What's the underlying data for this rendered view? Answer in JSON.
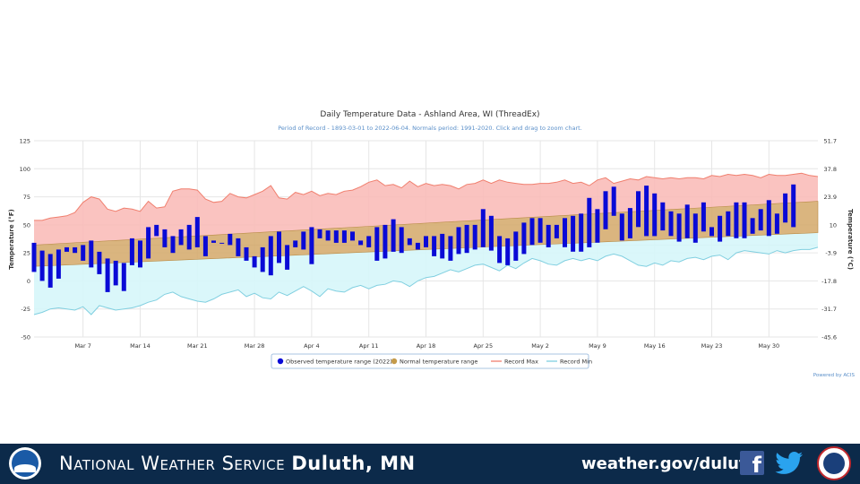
{
  "chart_data": {
    "type": "bar",
    "title": "Daily Temperature Data - Ashland Area, WI (ThreadEx)",
    "subtitle": "Period of Record - 1893-03-01 to 2022-06-04. Normals period: 1991-2020. Click and drag to zoom chart.",
    "ylabel_left": "Temperature (°F)",
    "ylabel_right": "Temperature (°C)",
    "ylim": [
      -50,
      125
    ],
    "y_ticks": [
      "125",
      "100",
      "75",
      "50",
      "25",
      "0",
      "-25",
      "-50"
    ],
    "y_ticks_c": [
      "51.7",
      "37.8",
      "23.9",
      "10",
      "-3.9",
      "-17.8",
      "-31.7",
      "-45.6"
    ],
    "x_ticks": [
      "Mar 7",
      "Mar 14",
      "Mar 21",
      "Mar 28",
      "Apr 4",
      "Apr 11",
      "Apr 18",
      "Apr 25",
      "May 2",
      "May 9",
      "May 16",
      "May 23",
      "May 30"
    ],
    "x_tick_days": [
      6,
      13,
      20,
      27,
      34,
      41,
      48,
      55,
      62,
      69,
      76,
      83,
      90
    ],
    "grid": true,
    "legend_position": "bottom-center",
    "legend": [
      {
        "label": "Observed temperature range (2022)",
        "color": "#0a0ad6",
        "marker": "dot"
      },
      {
        "label": "Normal temperature range",
        "color": "#c49a4a",
        "marker": "dot"
      },
      {
        "label": "Record Max",
        "color": "#f07f6e",
        "marker": "line"
      },
      {
        "label": "Record Min",
        "color": "#80cfe0",
        "marker": "line"
      }
    ],
    "credit": "Powered by ACIS",
    "series": [
      {
        "name": "Observed temperature range (2022)",
        "color": "#0a0ad6",
        "lows": [
          8,
          0,
          -6,
          2,
          26,
          25,
          18,
          12,
          6,
          -10,
          -4,
          -9,
          14,
          12,
          20,
          40,
          30,
          25,
          32,
          28,
          30,
          22,
          34,
          36,
          32,
          22,
          18,
          12,
          8,
          5,
          16,
          10,
          30,
          28,
          15,
          38,
          36,
          34,
          34,
          36,
          32,
          30,
          18,
          20,
          26,
          25,
          32,
          28,
          30,
          22,
          20,
          18,
          24,
          25,
          28,
          30,
          27,
          16,
          14,
          18,
          24,
          32,
          34,
          30,
          38,
          30,
          26,
          26,
          30,
          34,
          46,
          58,
          36,
          38,
          48,
          40,
          40,
          45,
          40,
          35,
          38,
          34,
          44,
          40,
          35,
          40,
          38,
          38,
          42,
          45,
          40,
          42,
          52,
          48
        ],
        "highs": [
          34,
          27,
          24,
          28,
          30,
          30,
          32,
          36,
          26,
          20,
          18,
          16,
          38,
          36,
          48,
          50,
          46,
          40,
          46,
          50,
          57,
          40,
          36,
          34,
          42,
          38,
          30,
          22,
          30,
          40,
          44,
          32,
          36,
          44,
          48,
          46,
          45,
          45,
          45,
          44,
          36,
          40,
          48,
          50,
          55,
          48,
          38,
          34,
          40,
          40,
          42,
          40,
          48,
          50,
          50,
          64,
          58,
          40,
          38,
          44,
          52,
          56,
          56,
          50,
          50,
          56,
          58,
          60,
          74,
          64,
          80,
          84,
          60,
          65,
          80,
          85,
          78,
          70,
          62,
          60,
          68,
          60,
          70,
          48,
          58,
          62,
          70,
          70,
          56,
          64,
          72,
          60,
          78,
          86,
          80
        ]
      },
      {
        "name": "Normal temperature range",
        "color": "#c49a4a",
        "low_start": 13,
        "low_end": 43,
        "high_start": 32,
        "high_end": 71
      },
      {
        "name": "Record Max",
        "color": "#f07f6e",
        "values": [
          54,
          54,
          56,
          57,
          58,
          61,
          70,
          75,
          73,
          64,
          62,
          65,
          64,
          62,
          71,
          65,
          66,
          80,
          82,
          82,
          81,
          73,
          70,
          71,
          78,
          75,
          74,
          77,
          80,
          85,
          74,
          73,
          79,
          77,
          80,
          76,
          78,
          77,
          80,
          81,
          84,
          88,
          90,
          85,
          86,
          83,
          89,
          84,
          87,
          85,
          86,
          85,
          82,
          86,
          87,
          90,
          87,
          90,
          88,
          87,
          86,
          86,
          87,
          87,
          88,
          90,
          87,
          88,
          85,
          90,
          92,
          87,
          89,
          91,
          90,
          93,
          92,
          91,
          92,
          91,
          92,
          92,
          91,
          94,
          93,
          95,
          94,
          95,
          94,
          92,
          95,
          94,
          94,
          95,
          96,
          94,
          93
        ]
      },
      {
        "name": "Record Min",
        "color": "#80cfe0",
        "values": [
          -30,
          -28,
          -25,
          -24,
          -25,
          -26,
          -23,
          -30,
          -22,
          -24,
          -26,
          -25,
          -24,
          -22,
          -19,
          -17,
          -12,
          -10,
          -14,
          -16,
          -18,
          -19,
          -16,
          -12,
          -10,
          -8,
          -14,
          -11,
          -15,
          -16,
          -10,
          -13,
          -9,
          -5,
          -9,
          -14,
          -7,
          -9,
          -10,
          -6,
          -4,
          -7,
          -4,
          -3,
          0,
          -1,
          -5,
          0,
          3,
          4,
          7,
          10,
          8,
          11,
          14,
          15,
          12,
          9,
          14,
          11,
          16,
          20,
          18,
          15,
          14,
          18,
          20,
          18,
          20,
          18,
          22,
          24,
          22,
          18,
          14,
          13,
          16,
          14,
          18,
          17,
          20,
          21,
          19,
          22,
          23,
          19,
          25,
          27,
          26,
          25,
          24,
          27,
          25,
          27,
          28,
          28,
          30
        ]
      }
    ]
  },
  "footer": {
    "title_prefix": "National Weather Service",
    "title_office": "Duluth, MN",
    "website": "weather.gov/duluth",
    "noaa_logo_icon": "noaa-logo-icon",
    "facebook_icon": "facebook-icon",
    "facebook_glyph": "f",
    "twitter_icon": "twitter-icon",
    "nws_seal_icon": "nws-seal-icon"
  }
}
